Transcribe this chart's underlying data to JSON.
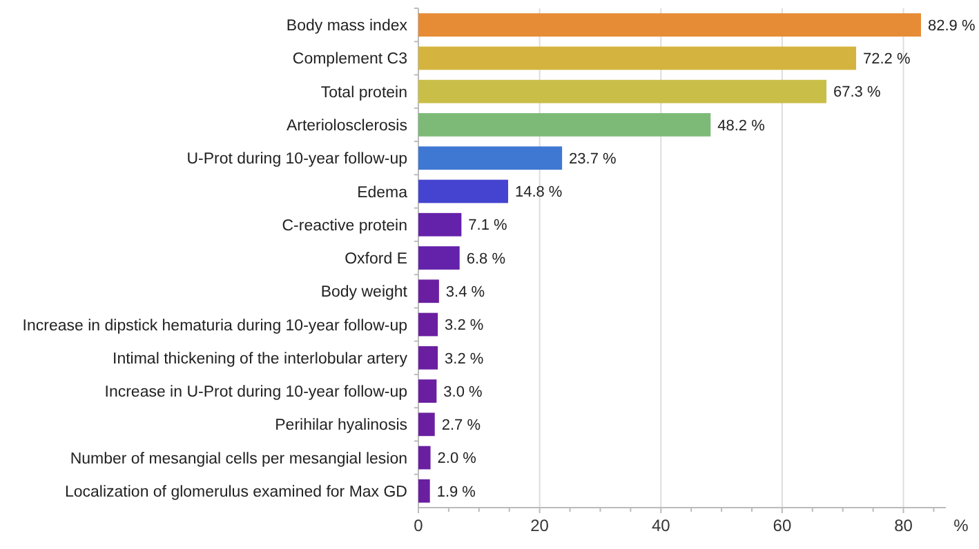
{
  "chart_data": {
    "type": "bar",
    "orientation": "horizontal",
    "xlabel": "%",
    "categories": [
      "Body mass index",
      "Complement C3",
      "Total protein",
      "Arteriolosclerosis",
      "U-Prot during 10-year follow-up",
      "Edema",
      "C-reactive protein",
      "Oxford E",
      "Body weight",
      "Increase in dipstick hematuria during 10-year follow-up",
      "Intimal thickening of the interlobular artery",
      "Increase in U-Prot during 10-year follow-up",
      "Perihilar hyalinosis",
      "Number of mesangial cells per mesangial lesion",
      "Localization of glomerulus examined for Max GD"
    ],
    "values": [
      82.9,
      72.2,
      67.3,
      48.2,
      23.7,
      14.8,
      7.1,
      6.8,
      3.4,
      3.2,
      3.2,
      3.0,
      2.7,
      2.0,
      1.9
    ],
    "value_labels": [
      "82.9 %",
      "72.2 %",
      "67.3 %",
      "48.2 %",
      "23.7 %",
      "14.8 %",
      "7.1 %",
      "6.8 %",
      "3.4 %",
      "3.2 %",
      "3.2 %",
      "3.0 %",
      "2.7 %",
      "2.0 %",
      "1.9 %"
    ],
    "colors": [
      "#e68c37",
      "#d4b43f",
      "#c9be48",
      "#7dba78",
      "#3f78d2",
      "#4444d0",
      "#6422aa",
      "#6422aa",
      "#6a1fa0",
      "#6a1fa0",
      "#6a1fa0",
      "#6a1fa0",
      "#6a1fa0",
      "#6a1fa0",
      "#6a1fa0"
    ],
    "xlim": [
      0,
      87
    ],
    "xticks": [
      0,
      {
        "value": 5,
        "label": null
      },
      {
        "value": 10,
        "label": null
      },
      {
        "value": 15,
        "label": null
      },
      20,
      {
        "value": 25,
        "label": null
      },
      {
        "value": 30,
        "label": null
      },
      {
        "value": 35,
        "label": null
      },
      40,
      {
        "value": 45,
        "label": null
      },
      {
        "value": 50,
        "label": null
      },
      {
        "value": 55,
        "label": null
      },
      60,
      {
        "value": 65,
        "label": null
      },
      {
        "value": 70,
        "label": null
      },
      {
        "value": 75,
        "label": null
      },
      80,
      {
        "value": 85,
        "label": null
      }
    ],
    "grid": "x"
  }
}
